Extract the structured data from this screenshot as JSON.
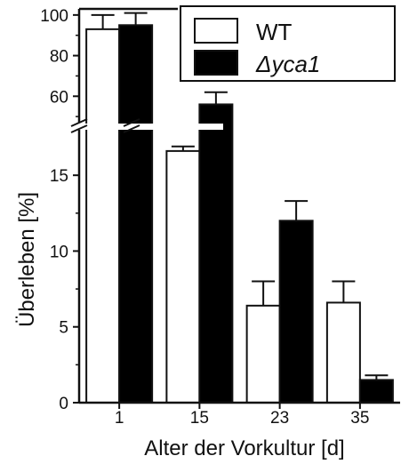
{
  "chart_data": {
    "type": "bar",
    "xlabel": "Alter der Vorkultur [d]",
    "ylabel": "Überleben [%]",
    "categories": [
      "1",
      "15",
      "23",
      "35"
    ],
    "y_axis_break": true,
    "lower_ylim": [
      0,
      18
    ],
    "lower_yticks": [
      "0",
      "5",
      "10",
      "15"
    ],
    "upper_ylim": [
      47,
      103
    ],
    "upper_yticks": [
      "60",
      "80",
      "100"
    ],
    "legend_position": "top-right",
    "grid": false,
    "series": [
      {
        "name": "WT",
        "color": "#ffffff",
        "values": [
          93,
          16.6,
          6.4,
          6.6
        ],
        "errors": [
          7,
          0.3,
          1.6,
          1.4
        ]
      },
      {
        "name": "Δyca1",
        "color": "#000000",
        "values": [
          95,
          56,
          12.0,
          1.5
        ],
        "errors": [
          6,
          6,
          1.3,
          0.3
        ]
      }
    ]
  }
}
